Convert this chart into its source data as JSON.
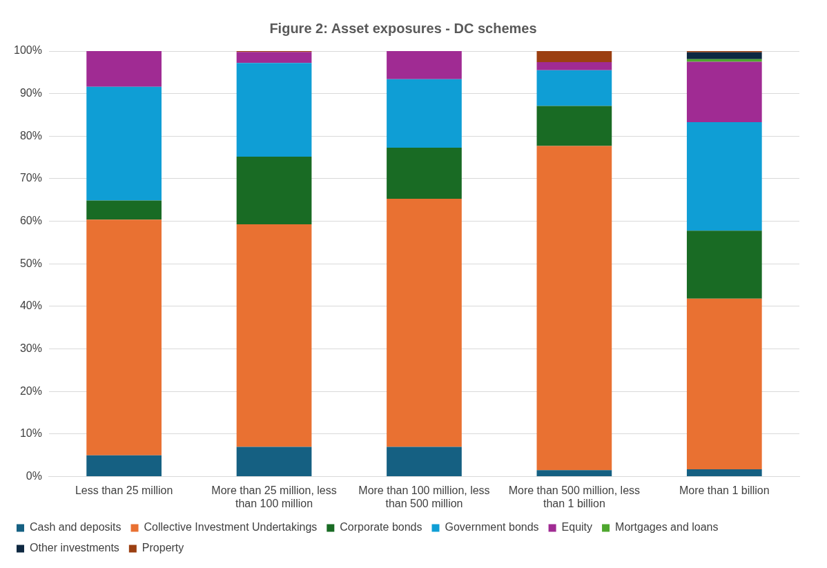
{
  "chart_data": {
    "type": "bar",
    "title": "Figure 2: Asset exposures - DC schemes",
    "stacked": true,
    "legend": "bottom",
    "grid": "y",
    "categories": [
      "Less than 25 million",
      "More than 25 million, less than 100 million",
      "More than 100 million, less than 500 million",
      "More than 500 million, less than 1 billion",
      "More than 1 billion"
    ],
    "ylim": [
      0,
      100
    ],
    "yticks": [
      {
        "value": 0,
        "label": "0%"
      },
      {
        "value": 10,
        "label": "10%"
      },
      {
        "value": 20,
        "label": "20%"
      },
      {
        "value": 30,
        "label": "30%"
      },
      {
        "value": 40,
        "label": "40%"
      },
      {
        "value": 50,
        "label": "50%"
      },
      {
        "value": 60,
        "label": "60%"
      },
      {
        "value": 70,
        "label": "70%"
      },
      {
        "value": 80,
        "label": "80%"
      },
      {
        "value": 90,
        "label": "90%"
      },
      {
        "value": 100,
        "label": "100%"
      }
    ],
    "series": [
      {
        "name": "Cash and deposits",
        "color": "#156082",
        "values": [
          5,
          7,
          7,
          1.5,
          1.7
        ]
      },
      {
        "name": "Collective Investment Undertakings",
        "color": "#e97132",
        "values": [
          55.4,
          52.3,
          58.3,
          76.2,
          40.1
        ]
      },
      {
        "name": "Corporate bonds",
        "color": "#196b24",
        "values": [
          4.5,
          15.9,
          12,
          9.4,
          16
        ]
      },
      {
        "name": "Government bonds",
        "color": "#0f9ed5",
        "values": [
          26.7,
          22,
          16.1,
          8.4,
          25.5
        ]
      },
      {
        "name": "Equity",
        "color": "#a02b93",
        "values": [
          8.4,
          2.6,
          6.6,
          1.9,
          14.2
        ]
      },
      {
        "name": "Mortgages and loans",
        "color": "#4ea72e",
        "values": [
          0,
          0,
          0,
          0,
          0.6
        ]
      },
      {
        "name": "Other investments",
        "color": "#0e2841",
        "values": [
          0,
          0,
          0,
          0,
          1.6
        ]
      },
      {
        "name": "Property",
        "color": "#9b3f11",
        "values": [
          0,
          0.2,
          0,
          2.6,
          0.3
        ]
      }
    ]
  }
}
